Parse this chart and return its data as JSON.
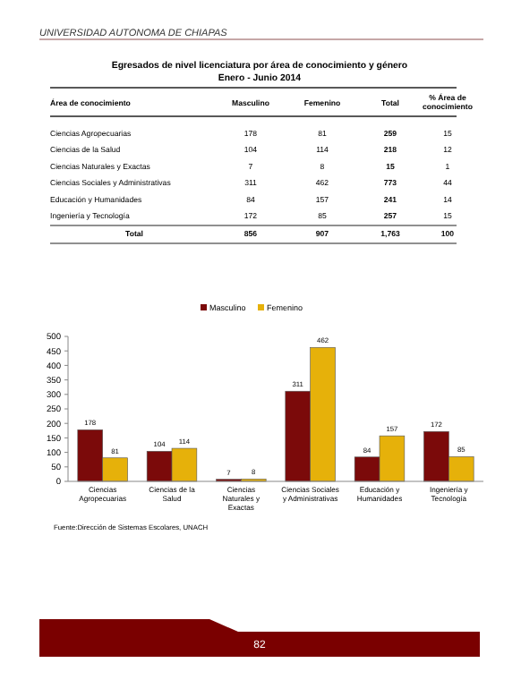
{
  "chart_data": [
    {
      "type": "other",
      "title": "Egresados de nivel licenciatura por área de conocimiento y género",
      "subtitle": "Enero - Junio 2014",
      "xlabel": "Área de conocimiento",
      "annotations": [
        "UNIVERSIDAD AUTONOMA DE CHIAPAS",
        "Total"
      ],
      "categories": [
        "Ciencias Agropecuarias",
        "Ciencias de la Salud",
        "Ciencias Naturales y Exactas",
        "Ciencias Sociales y Administrativas",
        "Educación y Humanidades",
        "Ingeniería y Tecnología"
      ],
      "series": [
        {
          "name": "Masculino",
          "values": [
            178,
            104,
            7,
            311,
            84,
            172
          ]
        },
        {
          "name": "Femenino",
          "values": [
            81,
            114,
            8,
            462,
            157,
            85
          ]
        },
        {
          "name": "Total",
          "values": [
            259,
            218,
            15,
            773,
            241,
            257
          ]
        },
        {
          "name": "% Área de conocimiento",
          "values": [
            15,
            12,
            1,
            44,
            14,
            15
          ]
        }
      ],
      "totals": [
        "856",
        "907",
        "1,763",
        "100"
      ],
      "data_labels": true
    },
    {
      "type": "bar",
      "categories": [
        "Ciencias Agropecuarias",
        "Ciencias de la Salud",
        "Ciencias Naturales y Exactas",
        "Ciencias Sociales y Administrativas",
        "Educación y Humanidades",
        "Ingeniería y Tecnología"
      ],
      "series": [
        {
          "name": "Masculino",
          "color": "#7b0a0a",
          "values": [
            178,
            104,
            7,
            311,
            84,
            172
          ]
        },
        {
          "name": "Femenino",
          "color": "#e6b10a",
          "values": [
            81,
            114,
            8,
            462,
            157,
            85
          ]
        }
      ],
      "ylim": [
        0,
        500
      ],
      "yticks": [
        0,
        50,
        100,
        150,
        200,
        250,
        300,
        350,
        400,
        450,
        500
      ],
      "data_labels": true,
      "legend": "top",
      "grid": false,
      "annotations": [
        "Fuente:Dirección de Sistemas Escolares, UNACH",
        "82"
      ]
    }
  ]
}
